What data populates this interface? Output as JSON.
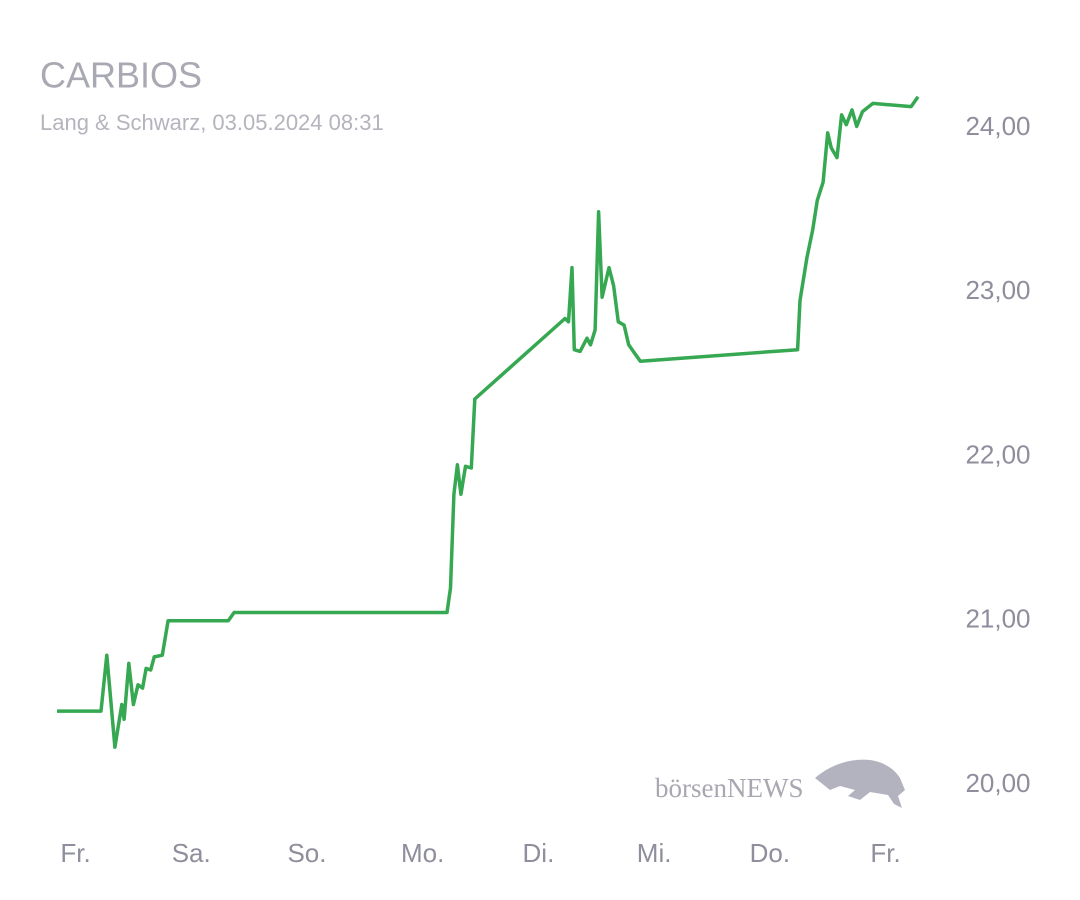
{
  "chart_data": {
    "type": "line",
    "title": "CARBIOS",
    "subtitle": "Lang & Schwarz, 03.05.2024 08:31",
    "watermark": "börsenNEWS",
    "color": "#36a852",
    "grid": false,
    "x": [
      -0.16,
      0.22,
      0.27,
      0.34,
      0.4,
      0.42,
      0.46,
      0.5,
      0.54,
      0.58,
      0.61,
      0.65,
      0.68,
      0.75,
      0.8,
      1.32,
      1.37,
      3.21,
      3.24,
      3.27,
      3.3,
      3.33,
      3.37,
      3.42,
      3.45,
      4.23,
      4.26,
      4.29,
      4.31,
      4.36,
      4.42,
      4.45,
      4.49,
      4.52,
      4.55,
      4.61,
      4.65,
      4.69,
      4.74,
      4.78,
      4.82,
      4.88,
      6.24,
      6.26,
      6.32,
      6.37,
      6.41,
      6.46,
      6.5,
      6.53,
      6.58,
      6.62,
      6.66,
      6.71,
      6.75,
      6.8,
      6.89,
      7.22,
      7.28
    ],
    "values": [
      20.45,
      20.45,
      20.79,
      20.23,
      20.49,
      20.4,
      20.74,
      20.49,
      20.61,
      20.59,
      20.71,
      20.7,
      20.78,
      20.79,
      21.0,
      21.0,
      21.05,
      21.05,
      21.2,
      21.77,
      21.95,
      21.77,
      21.94,
      21.93,
      22.35,
      22.84,
      22.82,
      23.15,
      22.65,
      22.64,
      22.72,
      22.68,
      22.77,
      23.49,
      22.97,
      23.15,
      23.04,
      22.82,
      22.8,
      22.68,
      22.64,
      22.58,
      22.65,
      22.95,
      23.21,
      23.38,
      23.56,
      23.67,
      23.97,
      23.88,
      23.82,
      24.08,
      24.02,
      24.11,
      24.01,
      24.1,
      24.15,
      24.13,
      24.19
    ],
    "xlim": [
      -0.16,
      7.28
    ],
    "xticks": [
      {
        "value": 0,
        "label": "Fr."
      },
      {
        "value": 1,
        "label": "Sa."
      },
      {
        "value": 2,
        "label": "So."
      },
      {
        "value": 3,
        "label": "Mo."
      },
      {
        "value": 4,
        "label": "Di."
      },
      {
        "value": 5,
        "label": "Mi."
      },
      {
        "value": 6,
        "label": "Do."
      },
      {
        "value": 7,
        "label": "Fr."
      }
    ],
    "ylim": [
      19.9,
      24.4
    ],
    "yticks": [
      {
        "value": 20,
        "label": "20,00"
      },
      {
        "value": 21,
        "label": "21,00"
      },
      {
        "value": 22,
        "label": "22,00"
      },
      {
        "value": 23,
        "label": "23,00"
      },
      {
        "value": 24,
        "label": "24,00"
      }
    ]
  }
}
